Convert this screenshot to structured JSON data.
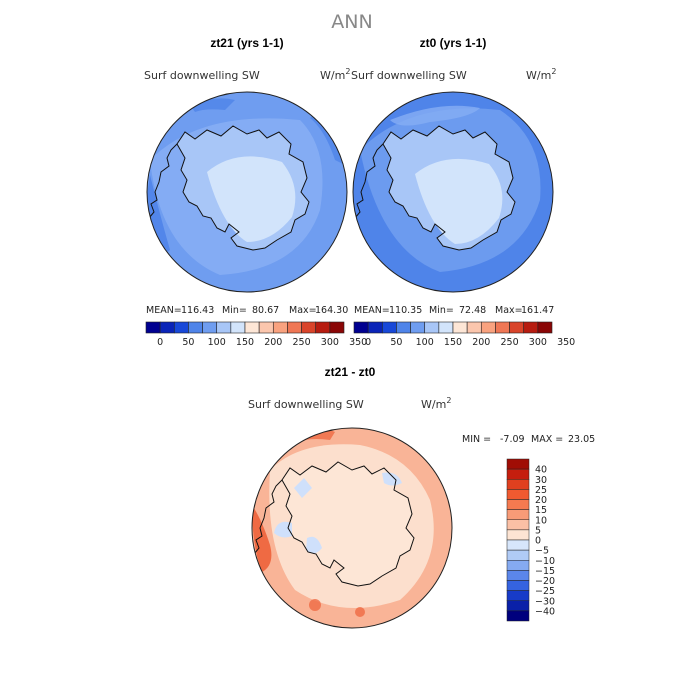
{
  "figure": {
    "title": "ANN",
    "colors": {
      "ocean_top_a": "#6f9df0",
      "ocean_top_b": "#86aef4",
      "ocean_top_c": "#4f84e9",
      "land_ring": "#a8c6f7",
      "land_center": "#d2e4fb",
      "diff_ocean": "#f9b497",
      "diff_ocean_light": "#fbd2bd",
      "diff_ocean_strong": "#ef6a43",
      "diff_land": "#fde6d6",
      "diff_blue": "#cfe0fb"
    }
  },
  "chart_data": [
    {
      "type": "heatmap",
      "projection": "south-polar-stereographic",
      "case_label": "zt21 (yrs 1-1)",
      "variable": "Surf downwelling SW",
      "units_base": "W/m",
      "units_exp": "2",
      "stats": {
        "mean_label": "MEAN=",
        "mean": "116.43",
        "min_label": "Min=",
        "min": "80.67",
        "max_label": "Max=",
        "max": "164.30"
      },
      "colorbar": {
        "orientation": "horizontal",
        "tick_labels": [
          "0",
          "50",
          "100",
          "150",
          "200",
          "250",
          "300",
          "350"
        ],
        "colors": [
          "#000090",
          "#0a24b8",
          "#1848d8",
          "#4f84e9",
          "#6f9df0",
          "#a8c6f7",
          "#d2e4fb",
          "#fde6d6",
          "#fbc6ad",
          "#f9a27f",
          "#ef7755",
          "#d9442a",
          "#b71c10",
          "#8a0606"
        ]
      }
    },
    {
      "type": "heatmap",
      "projection": "south-polar-stereographic",
      "case_label": "zt0 (yrs 1-1)",
      "variable": "Surf downwelling SW",
      "units_base": "W/m",
      "units_exp": "2",
      "stats": {
        "mean_label": "MEAN=",
        "mean": "110.35",
        "min_label": "Min=",
        "min": "72.48",
        "max_label": "Max=",
        "max": "161.47"
      },
      "colorbar": {
        "orientation": "horizontal",
        "tick_labels": [
          "0",
          "50",
          "100",
          "150",
          "200",
          "250",
          "300",
          "350"
        ],
        "colors": [
          "#000090",
          "#0a24b8",
          "#1848d8",
          "#4f84e9",
          "#6f9df0",
          "#a8c6f7",
          "#d2e4fb",
          "#fde6d6",
          "#fbc6ad",
          "#f9a27f",
          "#ef7755",
          "#d9442a",
          "#b71c10",
          "#8a0606"
        ]
      }
    },
    {
      "type": "heatmap",
      "projection": "south-polar-stereographic",
      "case_label": "zt21 - zt0",
      "variable": "Surf downwelling SW",
      "units_base": "W/m",
      "units_exp": "2",
      "stats": {
        "min_label": "MIN =",
        "min": "-7.09",
        "max_label": "MAX =",
        "max": "23.05"
      },
      "colorbar": {
        "orientation": "vertical",
        "tick_labels": [
          "40",
          "30",
          "25",
          "20",
          "15",
          "10",
          "5",
          "0",
          "−5",
          "−10",
          "−15",
          "−20",
          "−25",
          "−30",
          "−40"
        ],
        "colors": [
          "#a00d05",
          "#c51e0e",
          "#e0401f",
          "#f05a30",
          "#f57a50",
          "#f89b77",
          "#fbc0a5",
          "#fde4d3",
          "#d7e6fb",
          "#b0cbf6",
          "#85aaf1",
          "#5b86ea",
          "#3563e0",
          "#173bc8",
          "#0a20a8",
          "#00007d"
        ]
      }
    }
  ]
}
